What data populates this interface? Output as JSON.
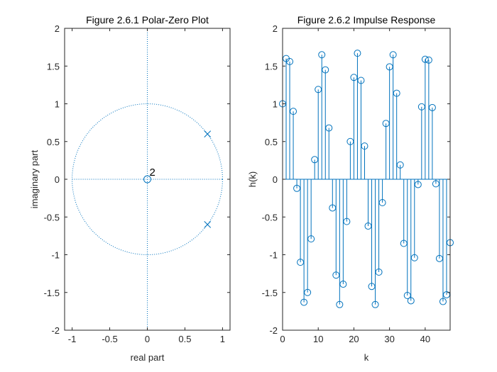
{
  "chart_data": [
    {
      "type": "scatter",
      "title": "Figure 2.6.1 Polar-Zero Plot",
      "xlabel": "real part",
      "ylabel": "imaginary part",
      "xlim": [
        -1.1,
        1.1
      ],
      "ylim": [
        -2,
        2
      ],
      "xticks": [
        -1,
        -0.5,
        0,
        0.5,
        1
      ],
      "xtick_labels": [
        "-1",
        "-0.5",
        "0",
        "0.5",
        "1"
      ],
      "yticks": [
        -2,
        -1.5,
        -1,
        -0.5,
        0,
        0.5,
        1,
        1.5,
        2
      ],
      "ytick_labels": [
        "-2",
        "-1.5",
        "-1",
        "-0.5",
        "0",
        "0.5",
        "1",
        "1.5",
        "2"
      ],
      "unit_circle": true,
      "zeros": [
        {
          "x": 0,
          "y": 0
        }
      ],
      "zero_multiplicity_label": "2",
      "poles": [
        {
          "x": 0.8,
          "y": 0.6
        },
        {
          "x": 0.8,
          "y": -0.6
        }
      ],
      "color": "#0072BD"
    },
    {
      "type": "stem",
      "title": "Figure 2.6.2 Impulse Response",
      "xlabel": "k",
      "ylabel": "h(k)",
      "xlim": [
        0,
        47
      ],
      "ylim": [
        -2,
        2
      ],
      "xticks": [
        0,
        10,
        20,
        30,
        40
      ],
      "xtick_labels": [
        "0",
        "10",
        "20",
        "30",
        "40"
      ],
      "yticks": [
        -2,
        -1.5,
        -1,
        -0.5,
        0,
        0.5,
        1,
        1.5,
        2
      ],
      "ytick_labels": [
        "-2",
        "-1.5",
        "-1",
        "-0.5",
        "0",
        "0.5",
        "1",
        "1.5",
        "2"
      ],
      "x": [
        0,
        1,
        2,
        3,
        4,
        5,
        6,
        7,
        8,
        9,
        10,
        11,
        12,
        13,
        14,
        15,
        16,
        17,
        18,
        19,
        20,
        21,
        22,
        23,
        24,
        25,
        26,
        27,
        28,
        29,
        30,
        31,
        32,
        33,
        34,
        35,
        36,
        37,
        38,
        39,
        40,
        41,
        42,
        43,
        44,
        45,
        46,
        47
      ],
      "values": [
        1.0,
        1.6,
        1.56,
        0.9,
        -0.12,
        -1.1,
        -1.63,
        -1.5,
        -0.79,
        0.26,
        1.19,
        1.65,
        1.45,
        0.68,
        -0.38,
        -1.27,
        -1.66,
        -1.39,
        -0.56,
        0.5,
        1.35,
        1.67,
        1.31,
        0.44,
        -0.62,
        -1.42,
        -1.66,
        -1.23,
        -0.31,
        0.74,
        1.49,
        1.65,
        1.14,
        0.19,
        -0.85,
        -1.54,
        -1.61,
        -1.04,
        -0.07,
        0.96,
        1.59,
        1.58,
        0.95,
        -0.06,
        -1.05,
        -1.62,
        -1.53,
        -0.84
      ],
      "color": "#0072BD"
    }
  ]
}
